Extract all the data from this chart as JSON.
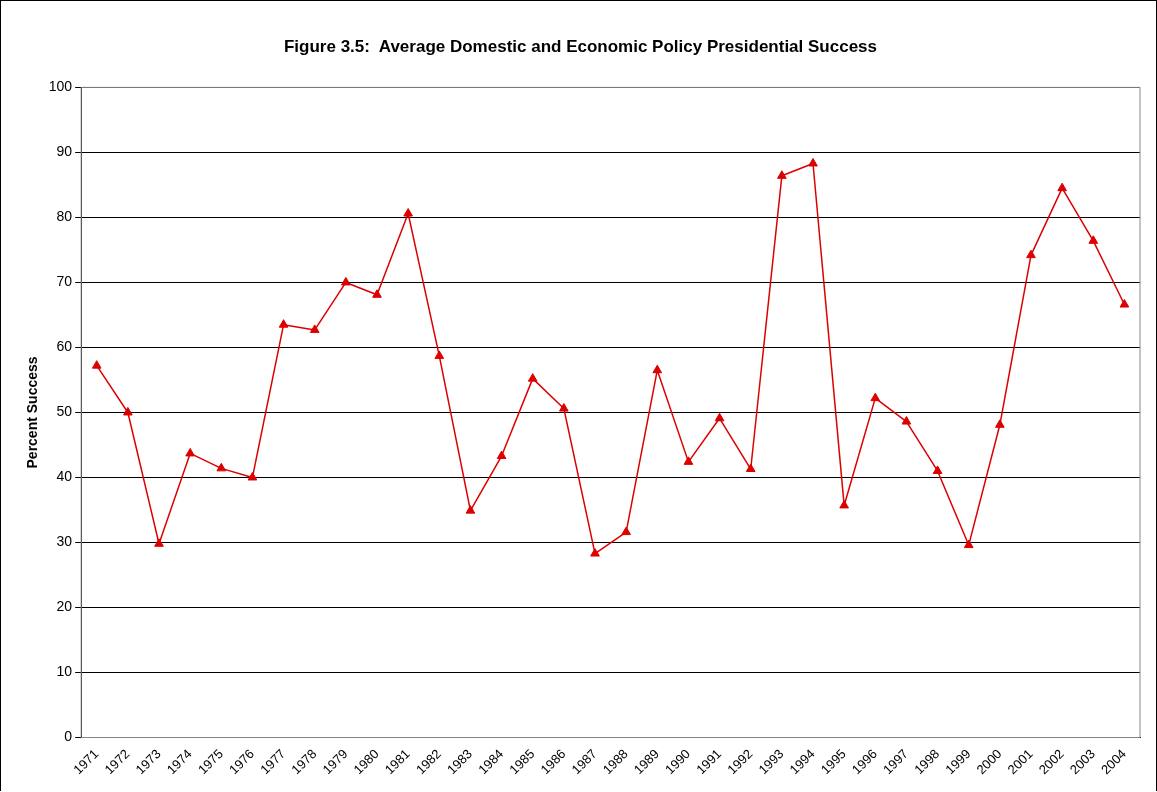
{
  "chart_data": {
    "type": "line",
    "title": "Figure 3.5:  Average Domestic and Economic Policy Presidential Success",
    "ylabel": "Percent Success",
    "categories": [
      "1971",
      "1972",
      "1973",
      "1974",
      "1975",
      "1976",
      "1977",
      "1978",
      "1979",
      "1980",
      "1981",
      "1982",
      "1983",
      "1984",
      "1985",
      "1986",
      "1987",
      "1988",
      "1989",
      "1990",
      "1991",
      "1992",
      "1993",
      "1994",
      "1995",
      "1996",
      "1997",
      "1998",
      "1999",
      "2000",
      "2001",
      "2002",
      "2003",
      "2004"
    ],
    "series": [
      {
        "color": "#dd0000",
        "values": [
          57.2,
          50,
          29.8,
          43.7,
          41.4,
          40,
          63.5,
          62.7,
          70,
          68.1,
          80.6,
          58.7,
          34.9,
          43.3,
          55.2,
          50.6,
          28.3,
          31.6,
          56.5,
          42.4,
          49.1,
          41.3,
          86.4,
          88.3,
          35.7,
          52.2,
          48.6,
          41,
          29.6,
          48.1,
          74.2,
          84.5,
          76.4,
          66.6
        ]
      }
    ],
    "ylim": [
      0,
      100
    ],
    "yticks": [
      0,
      10,
      20,
      30,
      40,
      50,
      60,
      70,
      80,
      90,
      100
    ],
    "grid": "y",
    "legend": false,
    "marker": "triangle",
    "line_style": "solid"
  }
}
